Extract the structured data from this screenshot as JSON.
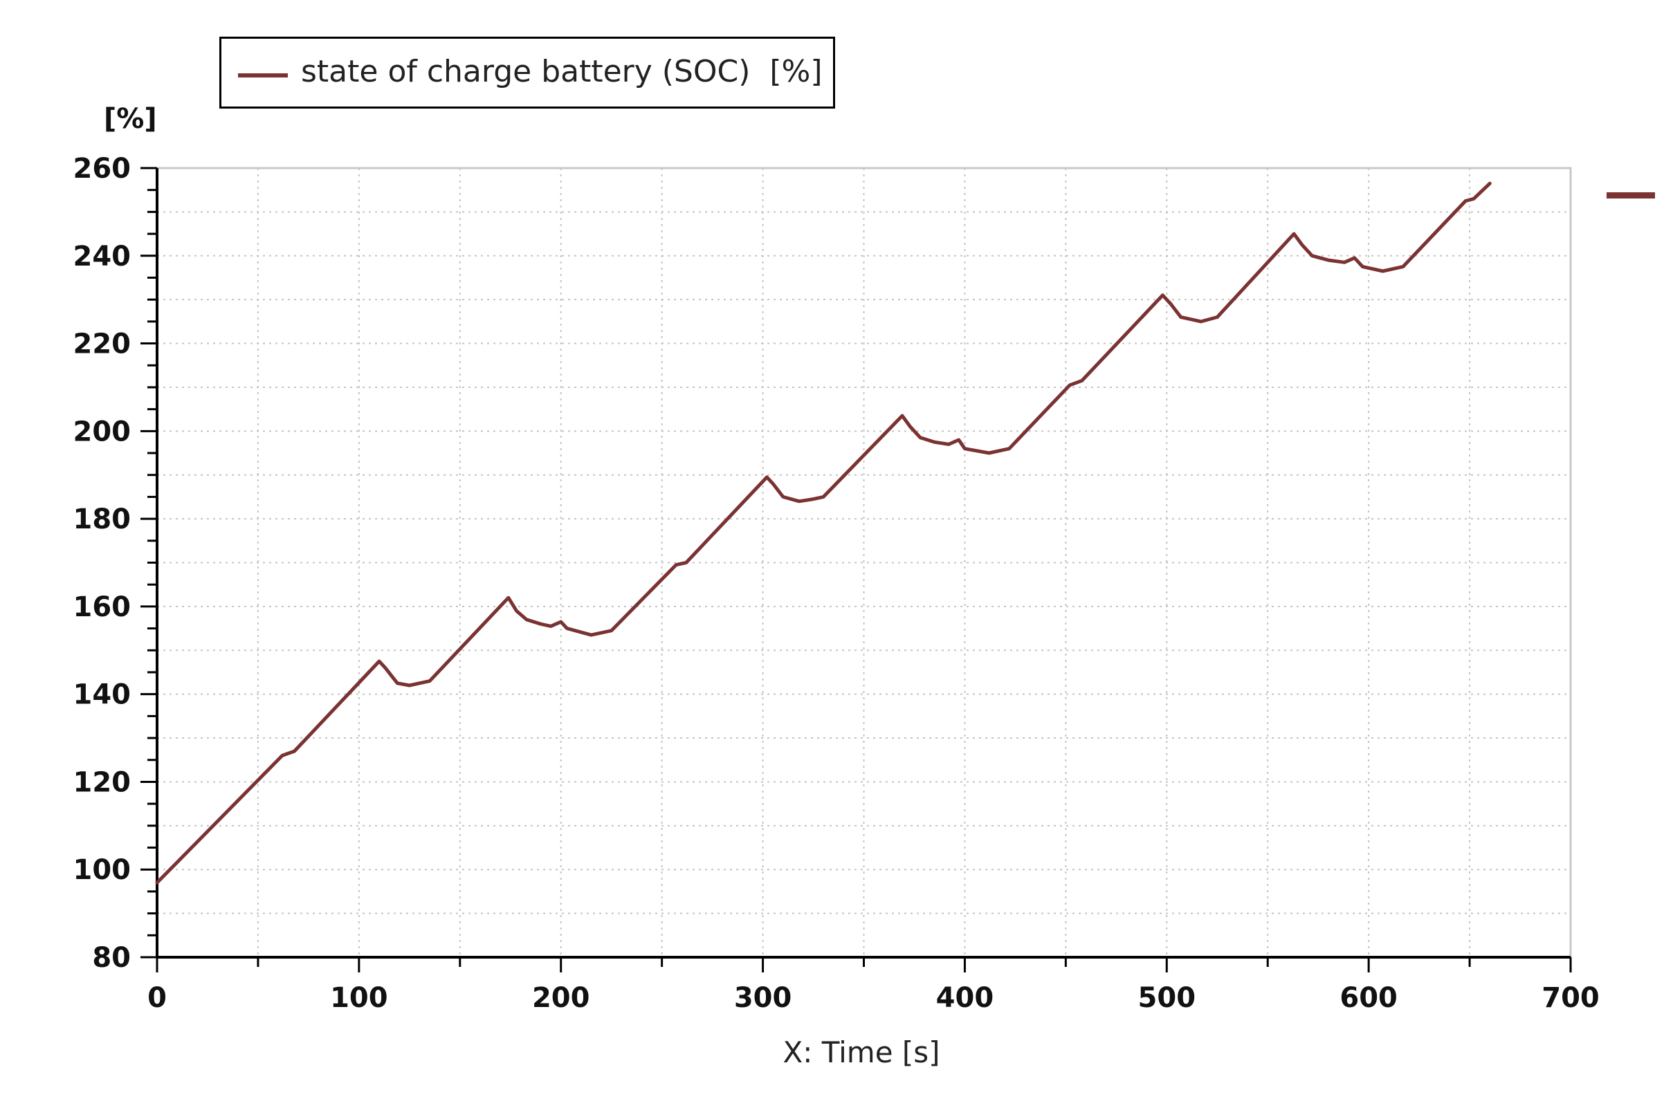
{
  "legend": {
    "label": "state of charge battery (SOC)  [%]",
    "color": "#7a3232"
  },
  "chart_data": {
    "type": "line",
    "ylabel": "[%]",
    "xlabel": "X: Time [s]",
    "xlim": [
      0,
      700
    ],
    "ylim": [
      80,
      260
    ],
    "xticks": [
      0,
      100,
      200,
      300,
      400,
      500,
      600,
      700
    ],
    "yticks": [
      80,
      100,
      120,
      140,
      160,
      180,
      200,
      220,
      240,
      260
    ],
    "grid": true,
    "legend_position": "top-left",
    "series": [
      {
        "name": "state of charge battery (SOC)  [%]",
        "color": "#7a3232",
        "x": [
          0,
          62,
          68,
          110,
          113,
          119,
          125,
          130,
          135,
          174,
          178,
          183,
          190,
          195,
          200,
          203,
          215,
          225,
          257,
          262,
          302,
          305,
          310,
          318,
          325,
          330,
          369,
          373,
          378,
          385,
          392,
          397,
          400,
          412,
          422,
          452,
          458,
          498,
          502,
          507,
          512,
          517,
          525,
          563,
          567,
          572,
          580,
          588,
          593,
          597,
          607,
          617,
          648,
          652,
          660
        ],
        "y": [
          97,
          126,
          127,
          147.5,
          146,
          142.5,
          142,
          142.5,
          143,
          162,
          159,
          157,
          156,
          155.5,
          156.5,
          155,
          153.5,
          154.5,
          169.5,
          170,
          189.5,
          188,
          185,
          184,
          184.5,
          185,
          203.5,
          201,
          198.5,
          197.5,
          197,
          198,
          196,
          195,
          196,
          210.5,
          211.5,
          231,
          229,
          226,
          225.5,
          225,
          226,
          245,
          242.5,
          240,
          239,
          238.5,
          239.5,
          237.5,
          236.5,
          237.5,
          252.5,
          253,
          256.5
        ]
      }
    ]
  }
}
